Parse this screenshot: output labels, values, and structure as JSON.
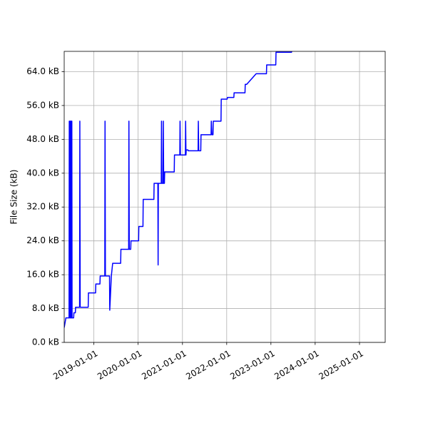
{
  "chart_data": {
    "type": "line",
    "title": "",
    "xlabel": "",
    "ylabel": "File Size (kB)",
    "grid": true,
    "legend": "none",
    "line_color": "#0000ff",
    "grid_color": "#b0b0b0",
    "xlim": [
      "2018-05-01",
      "2025-08-01"
    ],
    "ylim": [
      0,
      68.8
    ],
    "x_ticks": [
      "2019-01-01",
      "2020-01-01",
      "2021-01-01",
      "2022-01-01",
      "2023-01-01",
      "2024-01-01",
      "2025-01-01"
    ],
    "y_ticks": [
      {
        "value": 0,
        "label": "0.0 kB"
      },
      {
        "value": 8,
        "label": "8.0 kB"
      },
      {
        "value": 16,
        "label": "16.0 kB"
      },
      {
        "value": 24,
        "label": "24.0 kB"
      },
      {
        "value": 32,
        "label": "32.0 kB"
      },
      {
        "value": 40,
        "label": "40.0 kB"
      },
      {
        "value": 48,
        "label": "48.0 kB"
      },
      {
        "value": 56,
        "label": "56.0 kB"
      },
      {
        "value": 64,
        "label": "64.0 kB"
      }
    ],
    "series": [
      {
        "points": [
          [
            "2018-05-01",
            3.5
          ],
          [
            "2018-05-15",
            5.8
          ],
          [
            "2018-06-10",
            5.8
          ],
          [
            "2018-06-12",
            52.3
          ],
          [
            "2018-06-14",
            5.8
          ],
          [
            "2018-06-17",
            52.3
          ],
          [
            "2018-06-19",
            5.8
          ],
          [
            "2018-06-21",
            52.3
          ],
          [
            "2018-06-23",
            5.8
          ],
          [
            "2018-06-25",
            52.3
          ],
          [
            "2018-06-27",
            5.8
          ],
          [
            "2018-06-29",
            52.3
          ],
          [
            "2018-07-01",
            5.8
          ],
          [
            "2018-07-03",
            52.3
          ],
          [
            "2018-07-05",
            5.8
          ],
          [
            "2018-07-18",
            5.8
          ],
          [
            "2018-07-20",
            7.0
          ],
          [
            "2018-08-01",
            7.0
          ],
          [
            "2018-08-03",
            8.3
          ],
          [
            "2018-09-05",
            8.3
          ],
          [
            "2018-09-07",
            52.3
          ],
          [
            "2018-09-10",
            8.3
          ],
          [
            "2018-11-15",
            8.3
          ],
          [
            "2018-11-17",
            11.7
          ],
          [
            "2019-01-15",
            11.7
          ],
          [
            "2019-01-17",
            13.8
          ],
          [
            "2019-02-20",
            13.8
          ],
          [
            "2019-02-22",
            15.7
          ],
          [
            "2019-04-01",
            15.7
          ],
          [
            "2019-04-03",
            52.3
          ],
          [
            "2019-04-06",
            15.7
          ],
          [
            "2019-05-10",
            15.7
          ],
          [
            "2019-05-12",
            7.6
          ],
          [
            "2019-05-25",
            15.7
          ],
          [
            "2019-06-05",
            18.7
          ],
          [
            "2019-08-10",
            18.7
          ],
          [
            "2019-08-12",
            22.0
          ],
          [
            "2019-10-15",
            22.0
          ],
          [
            "2019-10-17",
            52.3
          ],
          [
            "2019-10-20",
            22.0
          ],
          [
            "2019-11-01",
            22.0
          ],
          [
            "2019-11-03",
            24.0
          ],
          [
            "2020-01-05",
            24.0
          ],
          [
            "2020-01-07",
            27.4
          ],
          [
            "2020-02-10",
            27.4
          ],
          [
            "2020-02-12",
            33.8
          ],
          [
            "2020-05-10",
            33.8
          ],
          [
            "2020-05-12",
            37.6
          ],
          [
            "2020-06-12",
            37.6
          ],
          [
            "2020-06-14",
            18.3
          ],
          [
            "2020-06-16",
            37.6
          ],
          [
            "2020-07-10",
            37.6
          ],
          [
            "2020-07-12",
            52.3
          ],
          [
            "2020-07-15",
            37.6
          ],
          [
            "2020-07-25",
            37.6
          ],
          [
            "2020-07-27",
            52.3
          ],
          [
            "2020-07-30",
            37.6
          ],
          [
            "2020-08-05",
            37.6
          ],
          [
            "2020-08-07",
            40.3
          ],
          [
            "2020-10-25",
            40.3
          ],
          [
            "2020-10-27",
            44.3
          ],
          [
            "2020-12-10",
            44.3
          ],
          [
            "2020-12-12",
            52.3
          ],
          [
            "2020-12-15",
            44.3
          ],
          [
            "2021-01-25",
            44.3
          ],
          [
            "2021-01-27",
            52.3
          ],
          [
            "2021-01-30",
            44.3
          ],
          [
            "2021-02-01",
            45.5
          ],
          [
            "2021-02-15",
            45.5
          ],
          [
            "2021-02-17",
            45.3
          ],
          [
            "2021-05-10",
            45.3
          ],
          [
            "2021-05-12",
            52.3
          ],
          [
            "2021-05-15",
            45.3
          ],
          [
            "2021-06-01",
            45.3
          ],
          [
            "2021-06-03",
            49.1
          ],
          [
            "2021-08-25",
            49.1
          ],
          [
            "2021-08-27",
            52.3
          ],
          [
            "2021-09-01",
            49.1
          ],
          [
            "2021-09-10",
            49.1
          ],
          [
            "2021-09-12",
            52.3
          ],
          [
            "2021-11-15",
            52.3
          ],
          [
            "2021-11-17",
            57.5
          ],
          [
            "2022-01-05",
            57.5
          ],
          [
            "2022-01-07",
            57.9
          ],
          [
            "2022-03-01",
            57.9
          ],
          [
            "2022-03-03",
            59.0
          ],
          [
            "2022-06-01",
            59.0
          ],
          [
            "2022-06-03",
            61.0
          ],
          [
            "2022-06-15",
            61.0
          ],
          [
            "2022-09-01",
            63.5
          ],
          [
            "2022-11-25",
            63.5
          ],
          [
            "2022-11-27",
            65.6
          ],
          [
            "2023-02-10",
            65.6
          ],
          [
            "2023-02-12",
            68.6
          ],
          [
            "2023-06-20",
            68.6
          ],
          [
            "2023-06-25",
            69.2
          ]
        ]
      }
    ]
  }
}
